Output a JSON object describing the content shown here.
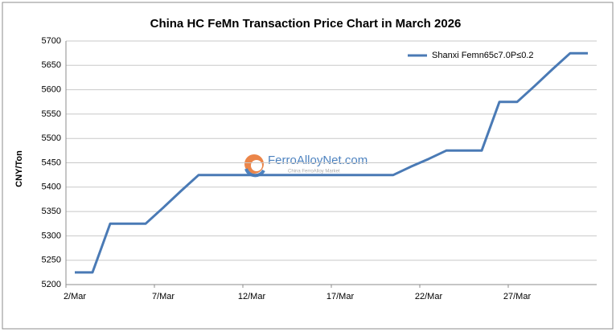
{
  "chart_data": {
    "type": "line",
    "title": "China HC FeMn  Transaction Price Chart in March 2026",
    "y_label": "CNY/Ton",
    "categories": [
      "2/Mar",
      null,
      null,
      null,
      null,
      "7/Mar",
      null,
      null,
      null,
      null,
      "12/Mar",
      null,
      null,
      null,
      null,
      "17/Mar",
      null,
      null,
      null,
      null,
      "22/Mar",
      null,
      null,
      null,
      null,
      "27/Mar",
      null,
      null,
      null,
      null
    ],
    "series": [
      {
        "name": "Shanxi Femn65c7.0P≤0.2",
        "color": "#4a7ab5",
        "values": [
          5225,
          5225,
          5325,
          5325,
          5325,
          5358,
          5392,
          5425,
          5425,
          5425,
          5425,
          5425,
          5425,
          5425,
          5425,
          5425,
          5425,
          5425,
          5425,
          5442,
          5458,
          5475,
          5475,
          5475,
          5575,
          5575,
          5608,
          5642,
          5675,
          5675
        ]
      }
    ],
    "ylim": [
      5200,
      5700
    ],
    "yticks": [
      5200,
      5250,
      5300,
      5350,
      5400,
      5450,
      5500,
      5550,
      5600,
      5650,
      5700
    ],
    "grid": true,
    "legend": "top-right",
    "watermark": {
      "text": "FerroAlloyNet.com",
      "subtext": "China FerroAlloy Market"
    }
  }
}
